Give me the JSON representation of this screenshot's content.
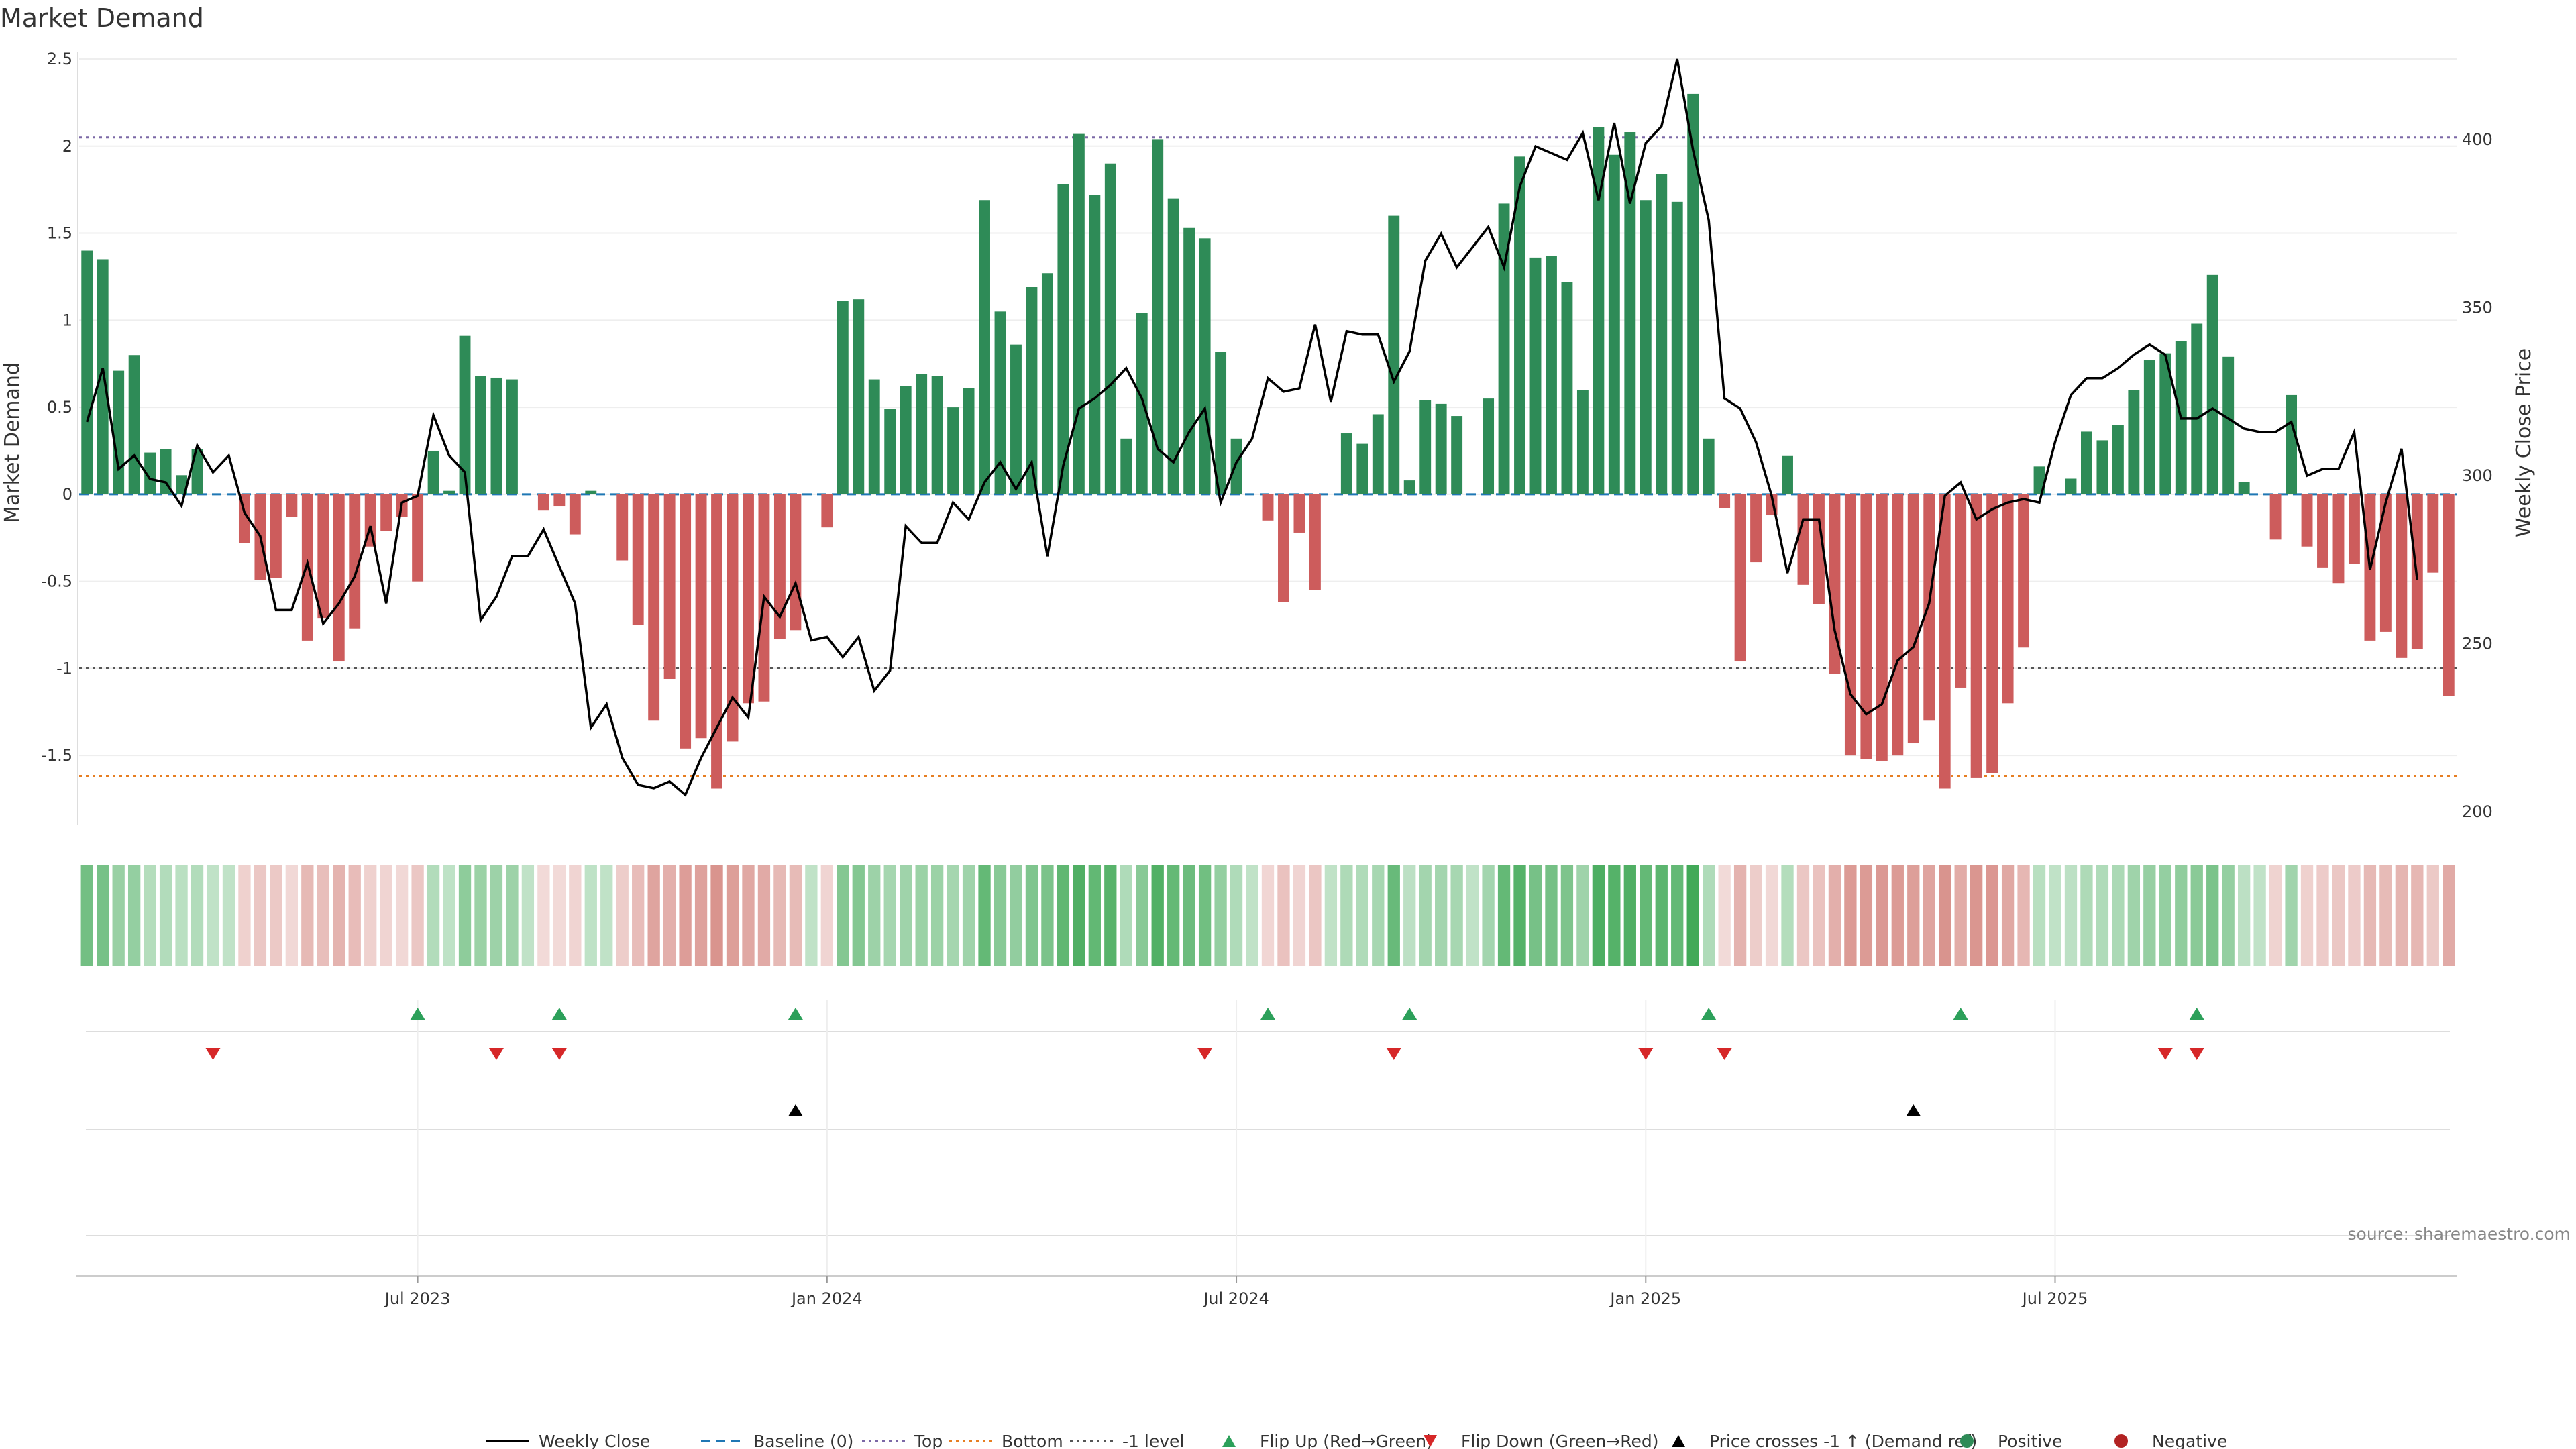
{
  "chart_data": {
    "type": "bar",
    "title": "Market Demand",
    "ylabel": "Market Demand",
    "y2label": "Weekly Close Price",
    "ylim": [
      -1.9,
      2.5
    ],
    "y2lim": [
      196,
      424
    ],
    "y_ticks": [
      2.5,
      2,
      1.5,
      1,
      0.5,
      0,
      -0.5,
      -1,
      -1.5
    ],
    "y2_ticks": [
      400,
      350,
      300,
      250,
      200
    ],
    "x_ticks": [
      {
        "index": 21,
        "label": "Jul 2023"
      },
      {
        "index": 47,
        "label": "Jan 2024"
      },
      {
        "index": 73,
        "label": "Jul 2024"
      },
      {
        "index": 99,
        "label": "Jan 2025"
      },
      {
        "index": 125,
        "label": "Jul 2025"
      }
    ],
    "reference_lines": [
      {
        "name": "Baseline (0)",
        "value": 0,
        "color": "#1f77b4"
      },
      {
        "name": "Top",
        "value": 2.05,
        "color": "#7b68a6"
      },
      {
        "name": "Bottom",
        "value": -1.62,
        "color": "#e67e22"
      },
      {
        "name": "-1 level",
        "value": -1.0,
        "color": "#555555"
      }
    ],
    "series": [
      {
        "name": "Market Demand",
        "type": "bar",
        "values": [
          1.4,
          1.35,
          0.71,
          0.8,
          0.24,
          0.26,
          0.11,
          0.26,
          0,
          0,
          -0.28,
          -0.49,
          -0.48,
          -0.13,
          -0.84,
          -0.71,
          -0.96,
          -0.77,
          -0.3,
          -0.21,
          -0.13,
          -0.5,
          0.25,
          0.02,
          0.91,
          0.68,
          0.67,
          0.66,
          0,
          -0.09,
          -0.07,
          -0.23,
          0.02,
          0,
          -0.38,
          -0.75,
          -1.3,
          -1.06,
          -1.46,
          -1.4,
          -1.69,
          -1.42,
          -1.2,
          -1.19,
          -0.83,
          -0.78,
          0,
          -0.19,
          1.11,
          1.12,
          0.66,
          0.49,
          0.62,
          0.69,
          0.68,
          0.5,
          0.61,
          1.69,
          1.05,
          0.86,
          1.19,
          1.27,
          1.78,
          2.07,
          1.72,
          1.9,
          0.32,
          1.04,
          2.04,
          1.7,
          1.53,
          1.47,
          0.82,
          0.32,
          0,
          -0.15,
          -0.62,
          -0.22,
          -0.55,
          0,
          0.35,
          0.29,
          0.46,
          1.6,
          0.08,
          0.54,
          0.52,
          0.45,
          0,
          0.55,
          1.67,
          1.94,
          1.36,
          1.37,
          1.22,
          0.6,
          2.11,
          1.95,
          2.08,
          1.69,
          1.84,
          1.68,
          2.3,
          0.32,
          -0.08,
          -0.96,
          -0.39,
          -0.12,
          0.22,
          -0.52,
          -0.63,
          -1.03,
          -1.5,
          -1.52,
          -1.53,
          -1.5,
          -1.43,
          -1.3,
          -1.69,
          -1.11,
          -1.63,
          -1.6,
          -1.2,
          -0.88,
          0.16,
          0,
          0.09,
          0.36,
          0.31,
          0.4,
          0.6,
          0.77,
          0.81,
          0.88,
          0.98,
          1.26,
          0.79,
          0.07,
          0,
          -0.26,
          0.57,
          -0.3,
          -0.42,
          -0.51,
          -0.4,
          -0.84,
          -0.79,
          -0.94,
          -0.89,
          -0.45,
          -1.16
        ]
      },
      {
        "name": "Weekly Close",
        "type": "line",
        "values": [
          316,
          332,
          302,
          306,
          299,
          298,
          291,
          309,
          301,
          306,
          289,
          282,
          260,
          260,
          274,
          256,
          262,
          270,
          285,
          262,
          292,
          294,
          318,
          306,
          301,
          257,
          264,
          276,
          276,
          284,
          273,
          262,
          225,
          232,
          216,
          208,
          207,
          209,
          205,
          216,
          225,
          234,
          228,
          264,
          258,
          268,
          251,
          252,
          246,
          252,
          236,
          242,
          285,
          280,
          280,
          292,
          287,
          298,
          304,
          296,
          304,
          276,
          303,
          320,
          323,
          327,
          332,
          323,
          308,
          304,
          313,
          320,
          292,
          304,
          311,
          329,
          325,
          326,
          345,
          322,
          343,
          342,
          342,
          328,
          337,
          364,
          372,
          362,
          368,
          374,
          362,
          386,
          398,
          396,
          394,
          402,
          382,
          405,
          381,
          399,
          404,
          424,
          397,
          376,
          323,
          320,
          310,
          294,
          271,
          287,
          287,
          254,
          235,
          229,
          232,
          245,
          249,
          262,
          294,
          298,
          287,
          290,
          292,
          293,
          292,
          310,
          324,
          329,
          329,
          332,
          336,
          339,
          336,
          317,
          317,
          320,
          317,
          314,
          313,
          313,
          316,
          300,
          302,
          302,
          313,
          272,
          292,
          308,
          269
        ]
      }
    ],
    "flip_up": [
      21,
      30,
      45,
      75,
      84,
      103,
      119,
      134
    ],
    "flip_down": [
      8,
      26,
      30,
      71,
      83,
      99,
      104,
      132,
      134
    ],
    "price_crosses": [
      45,
      116
    ],
    "legend_position": "bottom"
  },
  "legend": [
    {
      "label": "Weekly Close",
      "symbol": "line",
      "color": "#000000"
    },
    {
      "label": "Baseline (0)",
      "symbol": "dash",
      "color": "#1f77b4"
    },
    {
      "label": "Top",
      "symbol": "dot",
      "color": "#7b68a6"
    },
    {
      "label": "Bottom",
      "symbol": "dot",
      "color": "#e67e22"
    },
    {
      "label": "-1 level",
      "symbol": "dot",
      "color": "#555555"
    },
    {
      "label": "Flip Up (Red→Green)",
      "symbol": "tri-up",
      "color": "#2ca05a"
    },
    {
      "label": "Flip Down (Green→Red)",
      "symbol": "tri-down",
      "color": "#d62728"
    },
    {
      "label": "Price crosses -1 ↑ (Demand ref)",
      "symbol": "tri-up",
      "color": "#000000"
    },
    {
      "label": "Positive",
      "symbol": "circle",
      "color": "#2e8b57"
    },
    {
      "label": "Negative",
      "symbol": "circle",
      "color": "#b22222"
    }
  ],
  "source": "source: sharemaestro.com",
  "colors": {
    "positive": "#2e8b57",
    "negative": "#cd5c5c",
    "line": "#000000"
  }
}
